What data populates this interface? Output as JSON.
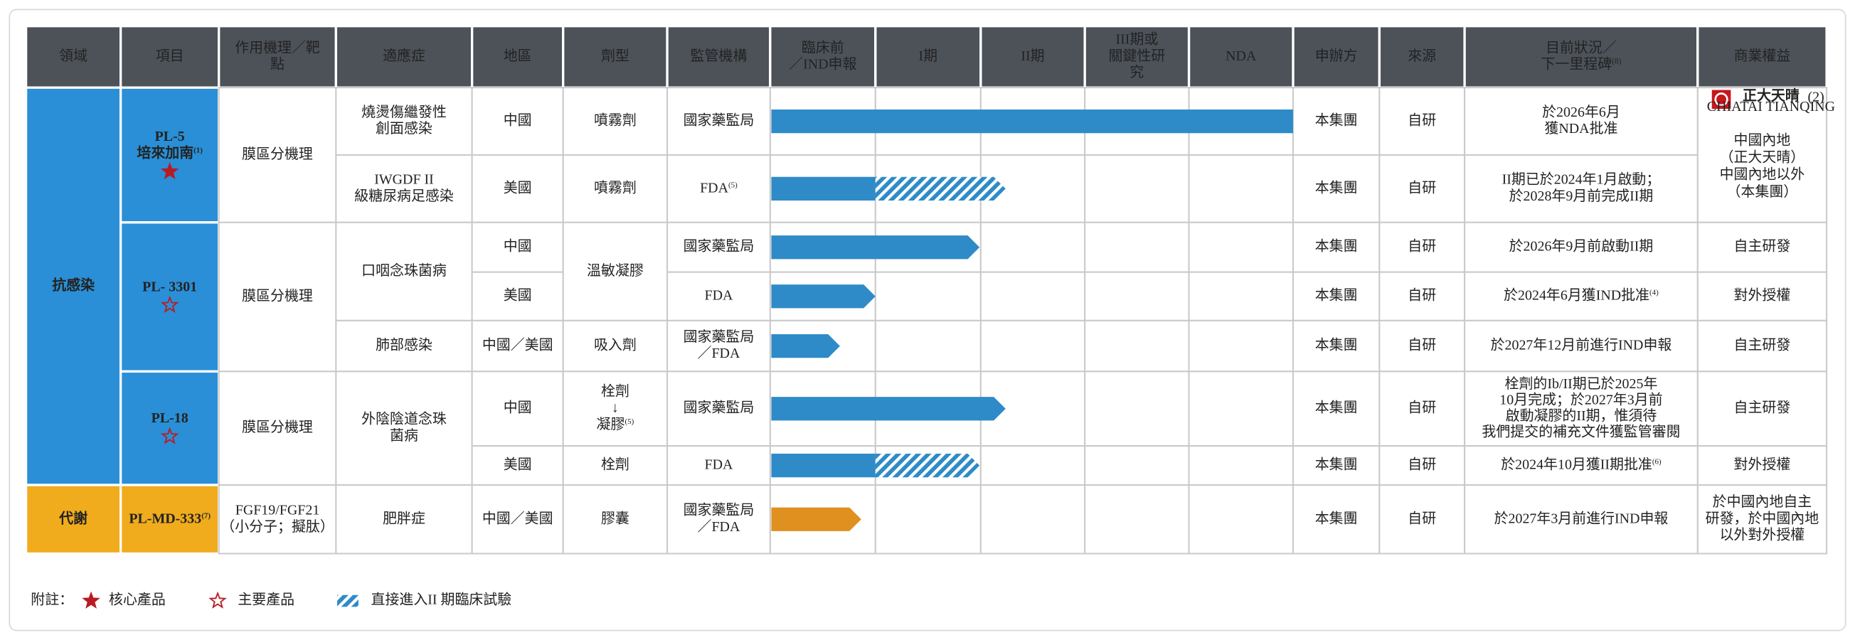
{
  "columns": [
    {
      "header": {
        "lines": [
          "領域"
        ]
      },
      "cells": [
        {
          "lines": [
            "抗感染"
          ]
        },
        {
          "lines": [
            "代謝"
          ]
        }
      ]
    },
    {
      "header": {
        "lines": [
          "項目"
        ]
      },
      "cells": [
        {
          "lines": [
            "PL-5",
            "培來加南"
          ],
          "note": "(1)"
        },
        {
          "lines": [
            "PL- 3301"
          ]
        },
        {
          "lines": [
            "PL-18"
          ]
        },
        {
          "lines": [
            "PL-MD-333"
          ],
          "note": "(7)"
        }
      ]
    },
    {
      "header": {
        "lines": [
          "作用機理／靶",
          "點"
        ]
      },
      "cells": [
        {
          "lines": [
            "膜區分機理"
          ]
        },
        {
          "lines": [
            "膜區分機理"
          ]
        },
        {
          "lines": [
            "膜區分機理"
          ]
        },
        {
          "lines": [
            "FGF19/FGF21",
            "（小分子；擬肽）"
          ]
        }
      ]
    },
    {
      "header": {
        "lines": [
          "適應症"
        ]
      },
      "cells": [
        {
          "lines": [
            "燒燙傷繼發性",
            "創面感染"
          ]
        },
        {
          "lines": [
            "IWGDF II",
            "級糖尿病足感染"
          ]
        },
        {
          "lines": [
            "口咽念珠菌病"
          ]
        },
        {
          "lines": [
            "肺部感染"
          ]
        },
        {
          "lines": [
            "外陰陰道念珠",
            "菌病"
          ]
        },
        {
          "lines": [
            "肥胖症"
          ]
        }
      ]
    },
    {
      "header": {
        "lines": [
          "地區"
        ]
      },
      "cells": [
        {
          "lines": [
            "中國"
          ]
        },
        {
          "lines": [
            "美國"
          ]
        },
        {
          "lines": [
            "中國"
          ]
        },
        {
          "lines": [
            "美國"
          ]
        },
        {
          "lines": [
            "中國／美國"
          ]
        },
        {
          "lines": [
            "中國"
          ]
        },
        {
          "lines": [
            "美國"
          ]
        },
        {
          "lines": [
            "中國／美國"
          ]
        }
      ]
    },
    {
      "header": {
        "lines": [
          "劑型"
        ]
      },
      "cells": [
        {
          "lines": [
            "噴霧劑"
          ]
        },
        {
          "lines": [
            "噴霧劑"
          ]
        },
        {
          "lines": [
            "溫敏凝膠"
          ]
        },
        {
          "lines": [
            "吸入劑"
          ]
        },
        {
          "lines": [
            "栓劑",
            "↓",
            "凝膠"
          ],
          "note": "(5)"
        },
        {
          "lines": [
            "栓劑"
          ]
        },
        {
          "lines": [
            "膠囊"
          ]
        }
      ]
    },
    {
      "header": {
        "lines": [
          "監管機構"
        ]
      },
      "cells": [
        {
          "lines": [
            "國家藥監局"
          ]
        },
        {
          "lines": [
            "FDA"
          ],
          "note": "(5)"
        },
        {
          "lines": [
            "國家藥監局"
          ]
        },
        {
          "lines": [
            "FDA"
          ]
        },
        {
          "lines": [
            "國家藥監局",
            "／FDA"
          ]
        },
        {
          "lines": [
            "國家藥監局"
          ]
        },
        {
          "lines": [
            "FDA"
          ]
        },
        {
          "lines": [
            "國家藥監局",
            "／FDA"
          ]
        }
      ]
    },
    {
      "header": {
        "lines": [
          "申辦方"
        ]
      },
      "cells": [
        {
          "lines": [
            "本集團"
          ]
        },
        {
          "lines": [
            "本集團"
          ]
        },
        {
          "lines": [
            "本集團"
          ]
        },
        {
          "lines": [
            "本集團"
          ]
        },
        {
          "lines": [
            "本集團"
          ]
        },
        {
          "lines": [
            "本集團"
          ]
        },
        {
          "lines": [
            "本集團"
          ]
        },
        {
          "lines": [
            "本集團"
          ]
        }
      ]
    },
    {
      "header": {
        "lines": [
          "來源"
        ]
      },
      "cells": [
        {
          "lines": [
            "自研"
          ]
        },
        {
          "lines": [
            "自研"
          ]
        },
        {
          "lines": [
            "自研"
          ]
        },
        {
          "lines": [
            "自研"
          ]
        },
        {
          "lines": [
            "自研"
          ]
        },
        {
          "lines": [
            "自研"
          ]
        },
        {
          "lines": [
            "自研"
          ]
        },
        {
          "lines": [
            "自研"
          ]
        }
      ]
    },
    {
      "header": {
        "lines": [
          "目前狀況／",
          "下一里程碑"
        ],
        "note": "(8)"
      },
      "cells": [
        {
          "lines": [
            "於2026年6月",
            "獲NDA批准"
          ]
        },
        {
          "lines": [
            "II期已於2024年1月啟動；",
            "於2028年9月前完成II期"
          ]
        },
        {
          "lines": [
            "於2026年9月前啟動II期"
          ]
        },
        {
          "lines": [
            "於2024年6月獲IND批准"
          ],
          "note": "(4)"
        },
        {
          "lines": [
            "於2027年12月前進行IND申報"
          ]
        },
        {
          "lines": [
            "栓劑的Ib/II期已於2025年",
            "10月完成；於2027年3月前",
            "啟動凝膠的II期，惟須待",
            "我們提交的補充文件獲監管審閱"
          ]
        },
        {
          "lines": [
            "於2024年10月獲II期批准"
          ],
          "note": "(6)"
        },
        {
          "lines": [
            "於2027年3月前進行IND申報"
          ]
        }
      ]
    },
    {
      "header": {
        "lines": [
          "商業權益"
        ]
      },
      "cells": [
        {
          "logo": "正大天晴",
          "logo_sub": "CHIATAI TIANQING",
          "logo_note": "(2)",
          "lines": [
            "中國內地",
            "（正大天晴）",
            "中國內地以外",
            "（本集團）"
          ]
        },
        {
          "lines": [
            "自主研發"
          ]
        },
        {
          "lines": [
            "對外授權"
          ]
        },
        {
          "lines": [
            "自主研發"
          ]
        },
        {
          "lines": [
            "自主研發"
          ]
        },
        {
          "lines": [
            "對外授權"
          ]
        },
        {
          "lines": [
            "於中國內地自主",
            "研發，於中國內地",
            "以外對外授權"
          ]
        }
      ]
    }
  ],
  "stages": [
    {
      "lines": [
        "臨床前",
        "／IND申報"
      ]
    },
    {
      "lines": [
        "I期"
      ]
    },
    {
      "lines": [
        "II期"
      ]
    },
    {
      "lines": [
        "III期或",
        "關鍵性研",
        "究"
      ]
    },
    {
      "lines": [
        "NDA"
      ]
    }
  ],
  "footer": {
    "label": "附註：",
    "core": "核心產品",
    "major": "主要產品",
    "direct": "直接進入II 期臨床試驗"
  }
}
